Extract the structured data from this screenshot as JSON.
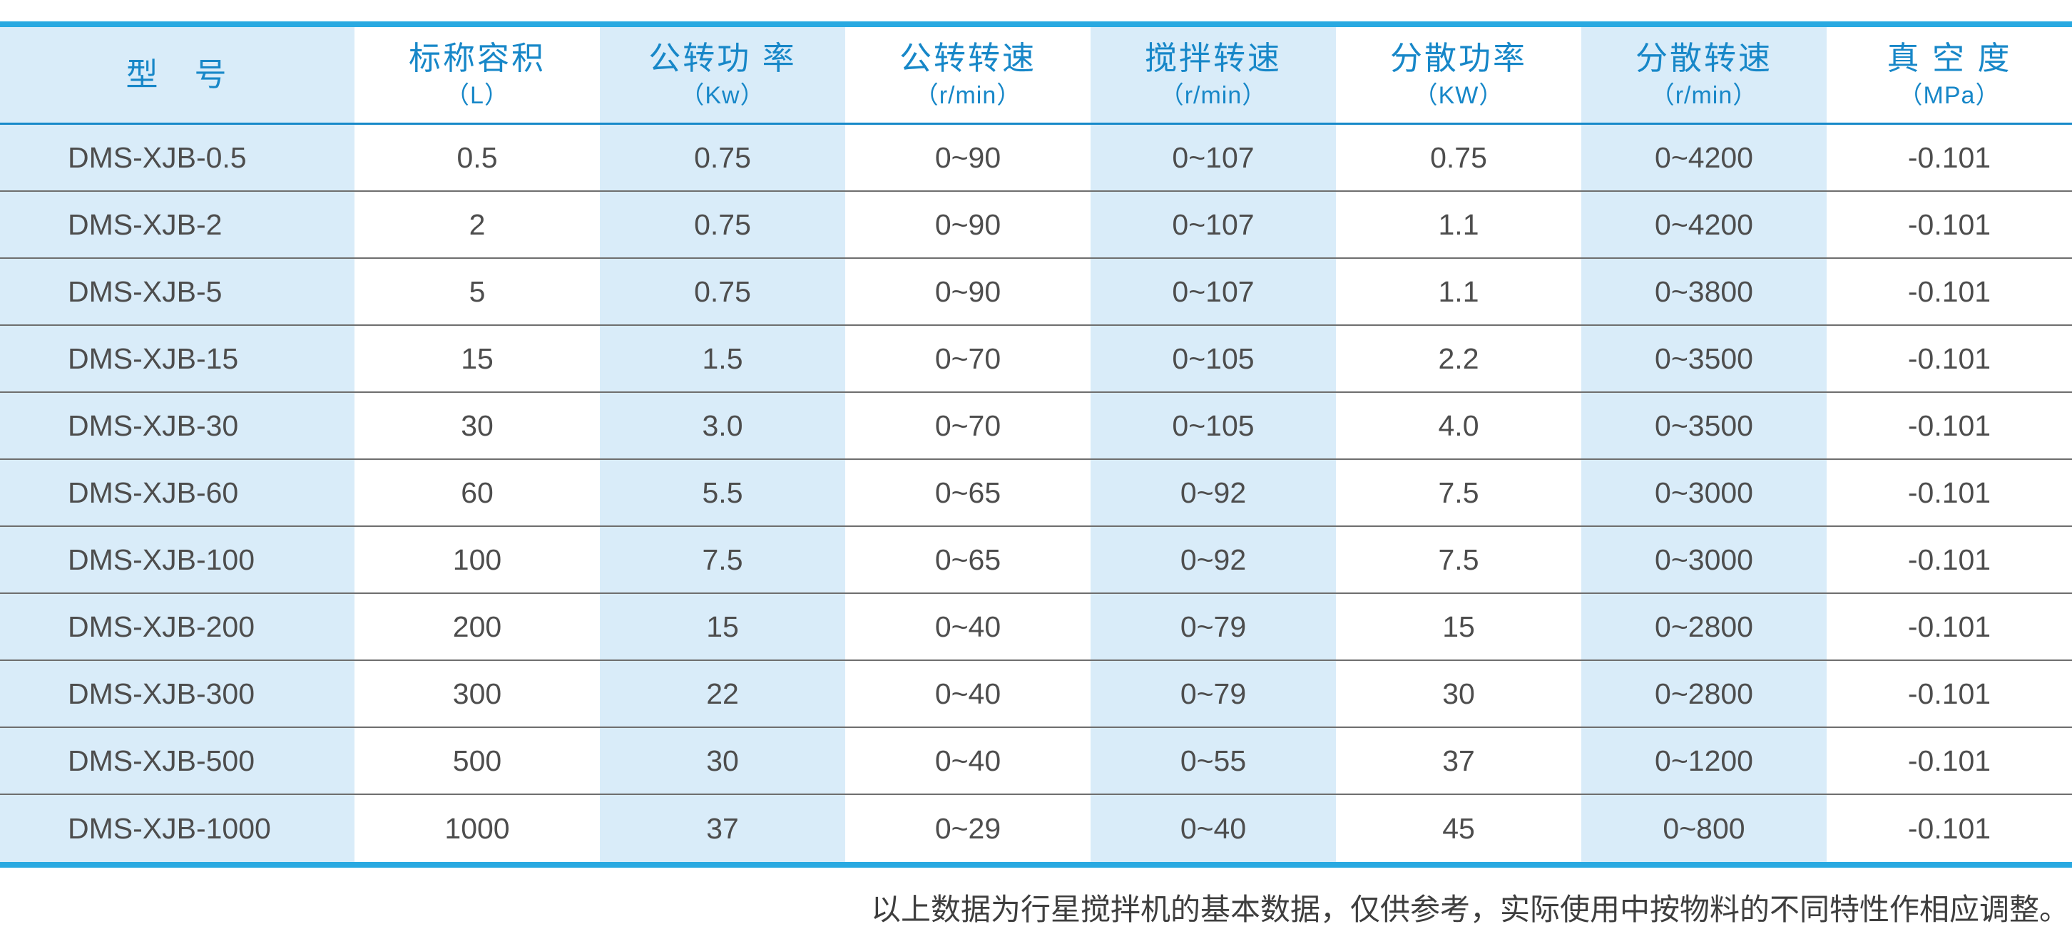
{
  "table": {
    "columns": [
      {
        "title": "型　号",
        "unit": ""
      },
      {
        "title": "标称容积",
        "unit": "（L）"
      },
      {
        "title": "公转功 率",
        "unit": "（Kw）"
      },
      {
        "title": "公转转速",
        "unit": "（r/min）"
      },
      {
        "title": "搅拌转速",
        "unit": "（r/min）"
      },
      {
        "title": "分散功率",
        "unit": "（KW）"
      },
      {
        "title": "分散转速",
        "unit": "（r/min）"
      },
      {
        "title": "真 空 度",
        "unit": "（MPa）"
      }
    ],
    "rows": [
      [
        "DMS-XJB-0.5",
        "0.5",
        "0.75",
        "0~90",
        "0~107",
        "0.75",
        "0~4200",
        "-0.101"
      ],
      [
        "DMS-XJB-2",
        "2",
        "0.75",
        "0~90",
        "0~107",
        "1.1",
        "0~4200",
        "-0.101"
      ],
      [
        "DMS-XJB-5",
        "5",
        "0.75",
        "0~90",
        "0~107",
        "1.1",
        "0~3800",
        "-0.101"
      ],
      [
        "DMS-XJB-15",
        "15",
        "1.5",
        "0~70",
        "0~105",
        "2.2",
        "0~3500",
        "-0.101"
      ],
      [
        "DMS-XJB-30",
        "30",
        "3.0",
        "0~70",
        "0~105",
        "4.0",
        "0~3500",
        "-0.101"
      ],
      [
        "DMS-XJB-60",
        "60",
        "5.5",
        "0~65",
        "0~92",
        "7.5",
        "0~3000",
        "-0.101"
      ],
      [
        "DMS-XJB-100",
        "100",
        "7.5",
        "0~65",
        "0~92",
        "7.5",
        "0~3000",
        "-0.101"
      ],
      [
        "DMS-XJB-200",
        "200",
        "15",
        "0~40",
        "0~79",
        "15",
        "0~2800",
        "-0.101"
      ],
      [
        "DMS-XJB-300",
        "300",
        "22",
        "0~40",
        "0~79",
        "30",
        "0~2800",
        "-0.101"
      ],
      [
        "DMS-XJB-500",
        "500",
        "30",
        "0~40",
        "0~55",
        "37",
        "0~1200",
        "-0.101"
      ],
      [
        "DMS-XJB-1000",
        "1000",
        "37",
        "0~29",
        "0~40",
        "45",
        "0~800",
        "-0.101"
      ]
    ]
  },
  "footnote": {
    "text": "以上数据为行星搅拌机的基本数据，仅供参考，实际使用中按物料的不同特性作相应调整。"
  },
  "colors": {
    "accent_border": "#29a9e1",
    "header_text": "#1787c8",
    "header_underline": "#1789c9",
    "stripe_blue": "#d9ecf9",
    "body_text": "#4d4d4d",
    "row_separator": "#6e6e6e",
    "footnote_text": "#3e3e3e"
  }
}
